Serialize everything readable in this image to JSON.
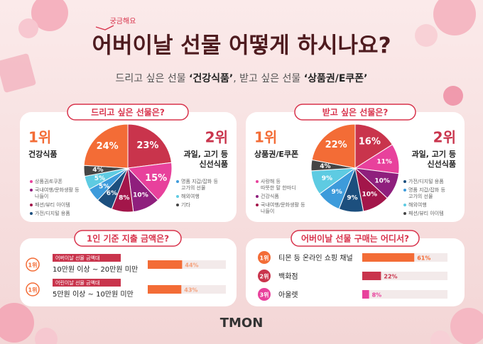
{
  "header": {
    "badge": "궁금해요",
    "title": "어버이날 선물 어떻게 하시나요?",
    "subtitle": [
      {
        "text": "드리고 싶은 선물 ",
        "bold": false
      },
      {
        "text": "‘건강식품’",
        "bold": true
      },
      {
        "text": ", 받고 싶은 선물 ",
        "bold": false
      },
      {
        "text": "‘상품권/E쿠폰’",
        "bold": true
      }
    ]
  },
  "chart_data": [
    {
      "type": "pie",
      "title": "드리고 싶은 선물은?",
      "values": [
        23,
        15,
        10,
        8,
        6,
        5,
        5,
        4,
        24
      ],
      "value_labels": [
        "23%",
        "15%",
        "10%",
        "8%",
        "6%",
        "5%",
        "5%",
        "4%",
        "24%"
      ],
      "colors": [
        "#c9344c",
        "#e8419c",
        "#8f1f7d",
        "#a3164a",
        "#1c4f7e",
        "#3d9bdb",
        "#5ecbe2",
        "#454545",
        "#f36c36"
      ],
      "rank1": {
        "rank": "1위",
        "name": [
          "건강식품"
        ]
      },
      "rank2": {
        "rank": "2위",
        "name": [
          "과일, 고기 등",
          "신선식품"
        ]
      },
      "legend_left": [
        {
          "name": [
            "상품권/E쿠폰"
          ],
          "color": "#e8419c"
        },
        {
          "name": [
            "국내여행/문화생활 등",
            "나들이"
          ],
          "color": "#8f1f7d"
        },
        {
          "name": [
            "패션/뷰티 아이템"
          ],
          "color": "#a3164a"
        },
        {
          "name": [
            "가전/디지털 용품"
          ],
          "color": "#1c4f7e"
        }
      ],
      "legend_right": [
        {
          "name": [
            "명품 지갑/잡화 등",
            "고가의 선물"
          ],
          "color": "#3d9bdb"
        },
        {
          "name": [
            "해외여행"
          ],
          "color": "#5ecbe2"
        },
        {
          "name": [
            "기타"
          ],
          "color": "#454545"
        }
      ]
    },
    {
      "type": "pie",
      "title": "받고 싶은 선물은?",
      "values": [
        16,
        11,
        10,
        10,
        9,
        9,
        9,
        4,
        22
      ],
      "value_labels": [
        "16%",
        "11%",
        "10%",
        "10%",
        "9%",
        "9%",
        "9%",
        "4%",
        "22%"
      ],
      "colors": [
        "#c9344c",
        "#e8419c",
        "#8f1f7d",
        "#a3164a",
        "#1c4f7e",
        "#3d9bdb",
        "#5ecbe2",
        "#454545",
        "#f36c36"
      ],
      "rank1": {
        "rank": "1위",
        "name": [
          "상품권/E쿠폰"
        ]
      },
      "rank2": {
        "rank": "2위",
        "name": [
          "과일, 고기 등",
          "신선식품"
        ]
      },
      "legend_left": [
        {
          "name": [
            "사랑해 등",
            "따뜻한 말 한마디"
          ],
          "color": "#e8419c"
        },
        {
          "name": [
            "건강식품"
          ],
          "color": "#8f1f7d"
        },
        {
          "name": [
            "국내여행/문화생활 등",
            "나들이"
          ],
          "color": "#a3164a"
        }
      ],
      "legend_right": [
        {
          "name": [
            "가전/디지털 용품"
          ],
          "color": "#1c4f7e"
        },
        {
          "name": [
            "명품 지갑/잡화 등",
            "고가의 선물"
          ],
          "color": "#3d9bdb"
        },
        {
          "name": [
            "해외여행"
          ],
          "color": "#5ecbe2"
        },
        {
          "name": [
            "패션/뷰티 아이템"
          ],
          "color": "#454545"
        }
      ]
    },
    {
      "type": "bar",
      "title": "1인 기준 지출 금액은?",
      "ranks": [
        "1위",
        "1위"
      ],
      "tags": [
        "어버이날 선물 금액대",
        "어린이날 선물 금액대"
      ],
      "categories": [
        "10만원 이상 ~ 20만원 미만",
        "5만원 이상 ~ 10만원 미만"
      ],
      "values": [
        44,
        43
      ],
      "value_labels": [
        "44%",
        "43%"
      ],
      "colors": [
        "#f36c36",
        "#f36c36"
      ],
      "xlim": [
        0,
        100
      ]
    },
    {
      "type": "bar",
      "title": "어버이날 선물 구매는 어디서?",
      "ranks": [
        "1위",
        "2위",
        "3위"
      ],
      "categories": [
        "티몬 등 온라인 쇼핑 채널",
        "백화점",
        "아울렛"
      ],
      "values": [
        61,
        22,
        8
      ],
      "value_labels": [
        "61%",
        "22%",
        "8%"
      ],
      "colors": [
        "#f36c36",
        "#c9344c",
        "#e8419c"
      ],
      "xlim": [
        0,
        100
      ]
    }
  ],
  "logo": "TMON"
}
